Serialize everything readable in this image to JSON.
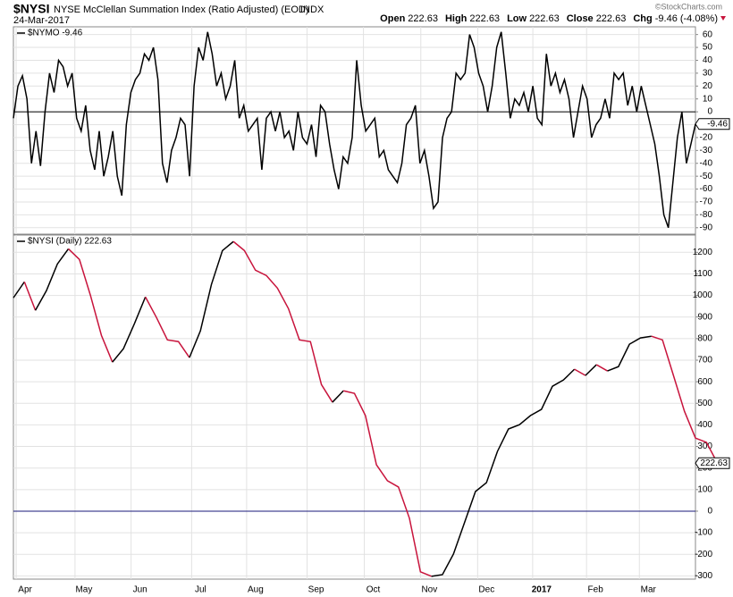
{
  "header": {
    "symbol": "$NYSI",
    "name": "NYSE McClellan Summation Index (Ratio Adjusted) (EOD)",
    "exchange": "INDX",
    "date": "24-Mar-2017",
    "watermark": "©StockCharts.com",
    "quote": [
      {
        "label": "Open",
        "value": 222.63
      },
      {
        "label": "High",
        "value": 222.63
      },
      {
        "label": "Low",
        "value": 222.63
      },
      {
        "label": "Close",
        "value": 222.63
      },
      {
        "label": "Chg",
        "value": -9.46,
        "change": "(-4.08%)"
      }
    ]
  },
  "chart_data": [
    {
      "type": "line",
      "title": "$NYMO -9.46",
      "grid": true,
      "zero_line_color": "#000000",
      "ylim": [
        -95,
        66
      ],
      "yticks": [
        60,
        50,
        40,
        30,
        20,
        10,
        0,
        -10,
        -20,
        -30,
        -40,
        -50,
        -60,
        -70,
        -80,
        -90
      ],
      "xlim": [
        0,
        151
      ],
      "xticks": [
        0.6,
        13.6,
        26,
        39.5,
        51.5,
        65,
        77.5,
        90.2,
        102.8,
        115,
        126.9,
        138.5
      ],
      "series": [
        {
          "name": "$NYMO",
          "color": "#000000",
          "values": [
            -5,
            20,
            28,
            10,
            -40,
            -15,
            -42,
            0,
            30,
            15,
            40,
            35,
            20,
            30,
            -5,
            -15,
            5,
            -30,
            -45,
            -15,
            -50,
            -35,
            -15,
            -50,
            -65,
            -10,
            15,
            25,
            30,
            45,
            40,
            50,
            25,
            -40,
            -55,
            -30,
            -20,
            -5,
            -10,
            -50,
            20,
            50,
            40,
            62,
            45,
            20,
            30,
            10,
            20,
            40,
            -5,
            5,
            -15,
            -10,
            -5,
            -45,
            -5,
            0,
            -15,
            0,
            -20,
            -15,
            -30,
            0,
            -20,
            -25,
            -10,
            -35,
            5,
            0,
            -25,
            -45,
            -60,
            -35,
            -40,
            -20,
            40,
            5,
            -15,
            -10,
            -5,
            -35,
            -30,
            -45,
            -50,
            -55,
            -40,
            -10,
            -5,
            5,
            -40,
            -30,
            -50,
            -75,
            -70,
            -20,
            -5,
            0,
            30,
            25,
            30,
            60,
            50,
            30,
            20,
            0,
            20,
            50,
            62,
            30,
            -5,
            10,
            5,
            15,
            0,
            20,
            -5,
            -10,
            45,
            20,
            30,
            15,
            25,
            10,
            -20,
            0,
            20,
            10,
            -20,
            -10,
            -5,
            10,
            -5,
            30,
            25,
            30,
            5,
            20,
            0,
            20,
            5,
            -10,
            -25,
            -50,
            -80,
            -90,
            -55,
            -20,
            0,
            -40,
            -25,
            -9.46
          ]
        }
      ]
    },
    {
      "type": "line",
      "title": "$NYSI (Daily) 222.63",
      "grid": true,
      "zero_line_color": "#1a1a7a",
      "ylim": [
        -315,
        1280
      ],
      "yticks": [
        1200,
        1100,
        1000,
        900,
        800,
        700,
        600,
        500,
        400,
        300,
        200,
        100,
        0,
        -100,
        -200,
        -300
      ],
      "xlim": [
        0,
        62
      ],
      "xticks": [
        {
          "value": 0.25,
          "label": "Apr"
        },
        {
          "value": 5.6,
          "label": "May"
        },
        {
          "value": 10.7,
          "label": "Jun"
        },
        {
          "value": 16.2,
          "label": "Jul"
        },
        {
          "value": 21.2,
          "label": "Aug"
        },
        {
          "value": 26.7,
          "label": "Sep"
        },
        {
          "value": 31.9,
          "label": "Oct"
        },
        {
          "value": 37,
          "label": "Nov"
        },
        {
          "value": 42.2,
          "label": "Dec"
        },
        {
          "value": 47.2,
          "label": "2017"
        },
        {
          "value": 52.1,
          "label": "Feb"
        },
        {
          "value": 56.9,
          "label": "Mar"
        }
      ],
      "bold_xtick": "2017",
      "series": [
        {
          "name": "$NYSI",
          "up_color": "#000000",
          "down_color": "#c8143c",
          "values": [
            989,
            1063,
            931,
            1022,
            1146,
            1216,
            1167,
            1001,
            815,
            691,
            753,
            869,
            993,
            898,
            794,
            786,
            712,
            836,
            1051,
            1208,
            1250,
            1208,
            1117,
            1092,
            1034,
            939,
            794,
            786,
            587,
            505,
            558,
            546,
            443,
            215,
            141,
            112,
            -33,
            -281,
            -302,
            -294,
            -199,
            -54,
            91,
            132,
            277,
            381,
            401,
            443,
            472,
            579,
            608,
            658,
            629,
            679,
            650,
            670,
            774,
            803,
            811,
            794,
            629,
            463,
            339,
            319,
            222.63
          ]
        }
      ]
    }
  ]
}
